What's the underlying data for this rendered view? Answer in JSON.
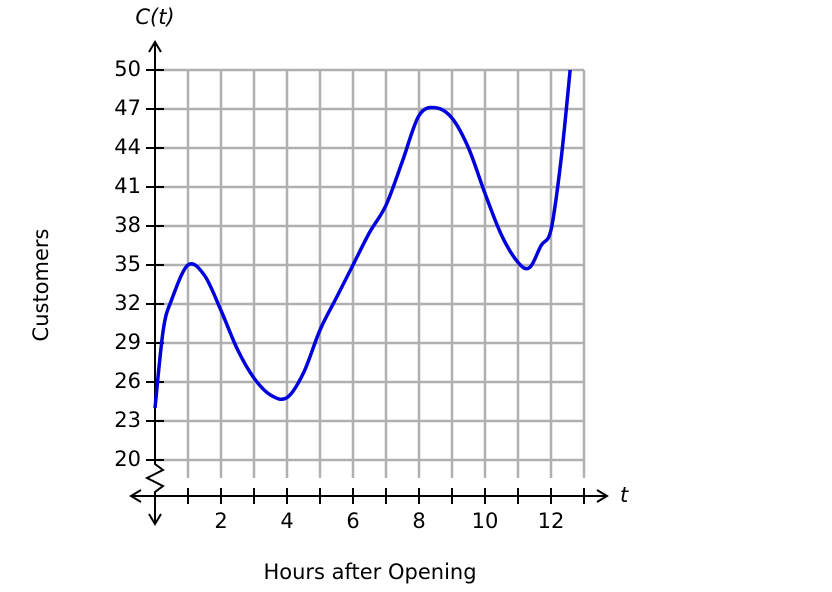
{
  "chart_data": {
    "type": "line",
    "x_label": "Hours after Opening",
    "y_label": "Customers",
    "y_axis_name": "C(t)",
    "x_axis_name": "t",
    "x": [
      0,
      0.25,
      0.5,
      1,
      1.5,
      2,
      2.5,
      3,
      3.5,
      4,
      4.5,
      5,
      5.5,
      6,
      6.5,
      7,
      7.5,
      8,
      8.5,
      9,
      9.5,
      10,
      10.5,
      11,
      11.35,
      11.7,
      12,
      12.3,
      12.58
    ],
    "series": [
      {
        "name": "C(t)",
        "color": "#0000dd",
        "values": [
          24,
          30,
          32.3,
          35,
          34.2,
          31.5,
          28.5,
          26.3,
          25,
          24.8,
          26.7,
          30,
          32.5,
          35,
          37.5,
          39.6,
          43,
          46.5,
          47.1,
          46.3,
          44,
          40.5,
          37.3,
          35.2,
          34.8,
          36.5,
          37.7,
          43,
          50
        ]
      }
    ],
    "xlim": [
      0,
      13
    ],
    "ylim": [
      20,
      50
    ],
    "xticks": [
      2,
      4,
      6,
      8,
      10,
      12
    ],
    "x_minor_ticks": [
      1,
      3,
      5,
      7,
      9,
      11,
      13
    ],
    "yticks": [
      20,
      23,
      26,
      29,
      32,
      35,
      38,
      41,
      44,
      47,
      50
    ],
    "grid": true
  }
}
